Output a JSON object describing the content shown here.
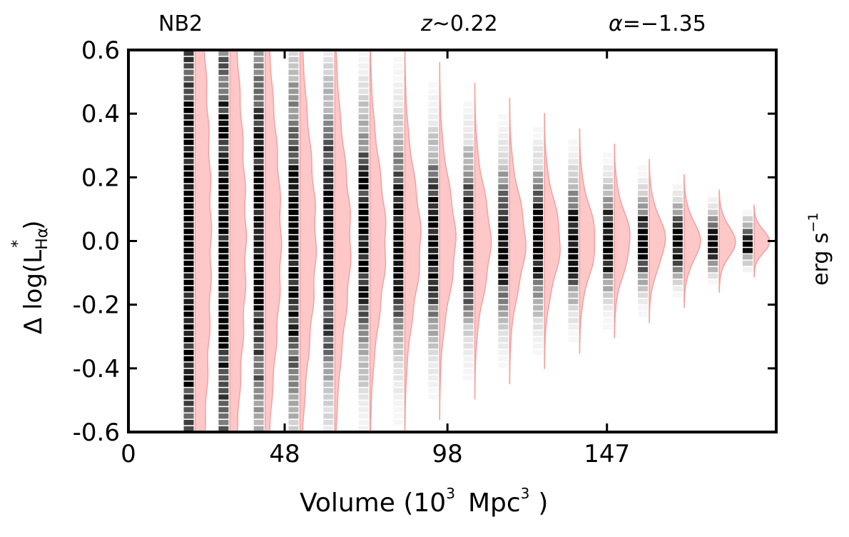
{
  "chart_data": {
    "type": "violin",
    "header": {
      "left": "NB2",
      "mid_var": "z",
      "mid_op": "~",
      "mid_val": "0.22",
      "right_var": "α",
      "right_op": "=",
      "right_val": "−1.35"
    },
    "xlabel": {
      "main": "Volume (10",
      "sup1": "3",
      "mid": "Mpc",
      "sup2": "3",
      "end": ")"
    },
    "ylabel": {
      "prefix": "Δ log(L",
      "sub": "Hα",
      "sup": "*",
      "suffix": ")"
    },
    "right_label": {
      "text": "erg s",
      "sup": "−1"
    },
    "xlim": [
      0,
      199
    ],
    "ylim": [
      -0.6,
      0.6
    ],
    "x_ticks": [
      {
        "value": 0,
        "label": "0"
      },
      {
        "value": 48,
        "label": "48"
      },
      {
        "value": 98,
        "label": "98"
      },
      {
        "value": 147,
        "label": "147"
      }
    ],
    "y_ticks": [
      {
        "value": 0.6,
        "label": "0.6"
      },
      {
        "value": 0.4,
        "label": "0.4"
      },
      {
        "value": 0.2,
        "label": "0.2"
      },
      {
        "value": 0.0,
        "label": "0.0"
      },
      {
        "value": -0.2,
        "label": "-0.2"
      },
      {
        "value": -0.4,
        "label": "-0.4"
      },
      {
        "value": -0.6,
        "label": "-0.6"
      }
    ],
    "grid": false,
    "colors": {
      "kde_fill": "#ffc8c8",
      "kde_line": "#f4a0a0",
      "hist": "#000000",
      "axes": "#000000"
    },
    "series": [
      {
        "volume": 20.5,
        "sigma": 0.6
      },
      {
        "volume": 31.2,
        "sigma": 0.48
      },
      {
        "volume": 42.0,
        "sigma": 0.38
      },
      {
        "volume": 52.7,
        "sigma": 0.32
      },
      {
        "volume": 63.4,
        "sigma": 0.27
      },
      {
        "volume": 74.2,
        "sigma": 0.23
      },
      {
        "volume": 84.9,
        "sigma": 0.2
      },
      {
        "volume": 95.6,
        "sigma": 0.175
      },
      {
        "volume": 106.4,
        "sigma": 0.155
      },
      {
        "volume": 117.1,
        "sigma": 0.14
      },
      {
        "volume": 127.8,
        "sigma": 0.125
      },
      {
        "volume": 138.6,
        "sigma": 0.11
      },
      {
        "volume": 149.3,
        "sigma": 0.095
      },
      {
        "volume": 160.0,
        "sigma": 0.08
      },
      {
        "volume": 170.7,
        "sigma": 0.065
      },
      {
        "volume": 181.5,
        "sigma": 0.05
      },
      {
        "volume": 192.2,
        "sigma": 0.035
      }
    ]
  }
}
